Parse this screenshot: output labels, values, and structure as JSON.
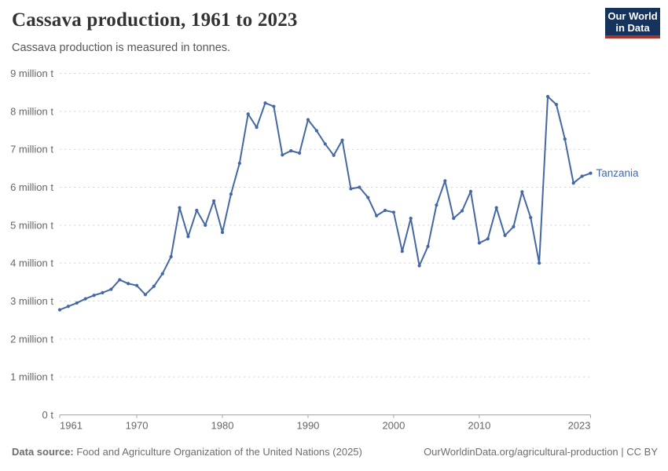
{
  "header": {
    "title": "Cassava production, 1961 to 2023",
    "subtitle": "Cassava production is measured in tonnes."
  },
  "logo": {
    "line1": "Our World",
    "line2": "in Data",
    "bg_color": "#15335d",
    "accent_color": "#a8352a"
  },
  "chart_data": {
    "type": "line",
    "title": "Cassava production, 1961 to 2023",
    "unit": "tonnes",
    "grid": true,
    "legend_position": "end-of-line",
    "xlabel": "",
    "ylabel": "",
    "xlim": [
      1961,
      2023
    ],
    "ylim_million_tonnes": [
      0,
      9
    ],
    "xticks": [
      1961,
      1970,
      1980,
      1990,
      2000,
      2010,
      2023
    ],
    "yticks": [
      {
        "value": 0,
        "label": "0 t"
      },
      {
        "value": 1,
        "label": "1 million t"
      },
      {
        "value": 2,
        "label": "2 million t"
      },
      {
        "value": 3,
        "label": "3 million t"
      },
      {
        "value": 4,
        "label": "4 million t"
      },
      {
        "value": 5,
        "label": "5 million t"
      },
      {
        "value": 6,
        "label": "6 million t"
      },
      {
        "value": 7,
        "label": "7 million t"
      },
      {
        "value": 8,
        "label": "8 million t"
      },
      {
        "value": 9,
        "label": "9 million t"
      }
    ],
    "x": [
      1961,
      1962,
      1963,
      1964,
      1965,
      1966,
      1967,
      1968,
      1969,
      1970,
      1971,
      1972,
      1973,
      1974,
      1975,
      1976,
      1977,
      1978,
      1979,
      1980,
      1981,
      1982,
      1983,
      1984,
      1985,
      1986,
      1987,
      1988,
      1989,
      1990,
      1991,
      1992,
      1993,
      1994,
      1995,
      1996,
      1997,
      1998,
      1999,
      2000,
      2001,
      2002,
      2003,
      2004,
      2005,
      2006,
      2007,
      2008,
      2009,
      2010,
      2011,
      2012,
      2013,
      2014,
      2015,
      2016,
      2017,
      2018,
      2019,
      2020,
      2021,
      2022,
      2023
    ],
    "series": [
      {
        "name": "Tanzania",
        "color": "#4568a3",
        "values_million_tonnes": [
          2.77,
          2.86,
          2.95,
          3.06,
          3.15,
          3.22,
          3.31,
          3.56,
          3.46,
          3.41,
          3.17,
          3.39,
          3.72,
          4.17,
          5.46,
          4.7,
          5.39,
          5.0,
          5.64,
          4.81,
          5.82,
          6.63,
          7.93,
          7.58,
          8.22,
          8.13,
          6.85,
          6.96,
          6.9,
          7.78,
          7.49,
          7.14,
          6.84,
          7.24,
          5.96,
          6.0,
          5.73,
          5.25,
          5.39,
          5.34,
          4.31,
          5.18,
          3.93,
          4.44,
          5.53,
          6.17,
          5.18,
          5.38,
          5.89,
          4.53,
          4.64,
          5.46,
          4.73,
          4.96,
          5.88,
          5.2,
          4.0,
          8.39,
          8.18,
          7.27,
          6.11,
          6.29,
          6.37
        ]
      }
    ],
    "colors": {
      "gridline": "#d9d9d9",
      "axis": "#a3a3a3",
      "tick_label": "#666666"
    }
  },
  "footer": {
    "source_label": "Data source:",
    "source_text": " Food and Agriculture Organization of the United Nations (2025)",
    "right_text": "OurWorldinData.org/agricultural-production | CC BY"
  }
}
